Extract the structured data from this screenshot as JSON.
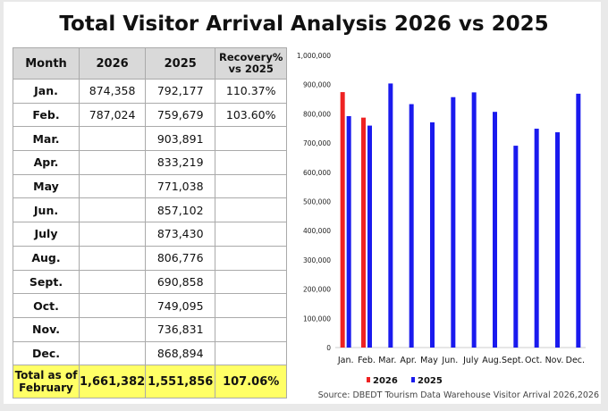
{
  "title": "Total Visitor Arrival Analysis 2026 vs 2025",
  "table": {
    "headers": [
      "Month",
      "2026",
      "2025",
      "Recovery%\nvs 2025"
    ],
    "header_recovery_line1": "Recovery%",
    "header_recovery_line2": "vs 2025",
    "rows": [
      [
        "Jan.",
        "874,358",
        "792,177",
        "110.37%"
      ],
      [
        "Feb.",
        "787,024",
        "759,679",
        "103.60%"
      ],
      [
        "Mar.",
        "",
        "903,891",
        ""
      ],
      [
        "Apr.",
        "",
        "833,219",
        ""
      ],
      [
        "May",
        "",
        "771,038",
        ""
      ],
      [
        "Jun.",
        "",
        "857,102",
        ""
      ],
      [
        "July",
        "",
        "873,430",
        ""
      ],
      [
        "Aug.",
        "",
        "806,776",
        ""
      ],
      [
        "Sept.",
        "",
        "690,858",
        ""
      ],
      [
        "Oct.",
        "",
        "749,095",
        ""
      ],
      [
        "Nov.",
        "",
        "736,831",
        ""
      ],
      [
        "Dec.",
        "",
        "868,894",
        ""
      ]
    ],
    "total": {
      "label_line1": "Total as of",
      "label_line2": "February",
      "v2026": "1,661,382",
      "v2025": "1,551,856",
      "recovery": "107.06%"
    }
  },
  "chart_data": {
    "type": "bar",
    "categories": [
      "Jan.",
      "Feb.",
      "Mar.",
      "Apr.",
      "May",
      "Jun.",
      "July",
      "Aug.",
      "Sept.",
      "Oct.",
      "Nov.",
      "Dec."
    ],
    "series": [
      {
        "name": "2026",
        "color": "#ee2222",
        "values": [
          874358,
          787024,
          null,
          null,
          null,
          null,
          null,
          null,
          null,
          null,
          null,
          null
        ]
      },
      {
        "name": "2025",
        "color": "#1a1aee",
        "values": [
          792177,
          759679,
          903891,
          833219,
          771038,
          857102,
          873430,
          806776,
          690858,
          749095,
          736831,
          868894
        ]
      }
    ],
    "ylim": [
      0,
      1000000
    ],
    "yticks": [
      "0",
      "100,000",
      "200,000",
      "300,000",
      "400,000",
      "500,000",
      "600,000",
      "700,000",
      "800,000",
      "900,000",
      "1,000,000"
    ],
    "legend": "bottom",
    "grid": false
  },
  "source": "Source: DBEDT Tourism Data Warehouse Visitor Arrival 2026,2026"
}
